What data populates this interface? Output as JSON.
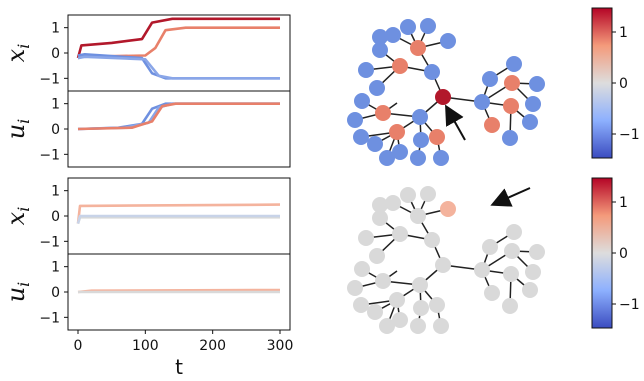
{
  "chart_data": [
    {
      "type": "line",
      "panel": "top-left-upper",
      "ylabel": "x_i",
      "xlim": [
        0,
        300
      ],
      "ylim": [
        -1.5,
        1.5
      ],
      "yticks": [
        "1",
        "0",
        "−1"
      ],
      "series": [
        {
          "color": "#b2182b",
          "points": [
            [
              0,
              -0.2
            ],
            [
              5,
              0.3
            ],
            [
              50,
              0.4
            ],
            [
              95,
              0.55
            ],
            [
              110,
              1.2
            ],
            [
              140,
              1.35
            ],
            [
              300,
              1.35
            ]
          ]
        },
        {
          "color": "#e8806a",
          "points": [
            [
              0,
              -0.2
            ],
            [
              5,
              -0.15
            ],
            [
              100,
              -0.1
            ],
            [
              115,
              0.2
            ],
            [
              130,
              0.9
            ],
            [
              160,
              1.0
            ],
            [
              300,
              1.0
            ]
          ]
        },
        {
          "color": "#6e90e0",
          "points": [
            [
              0,
              -0.1
            ],
            [
              10,
              -0.05
            ],
            [
              95,
              -0.2
            ],
            [
              110,
              -0.8
            ],
            [
              130,
              -1.0
            ],
            [
              300,
              -1.0
            ]
          ]
        },
        {
          "color": "#8aa6e8",
          "points": [
            [
              0,
              -0.2
            ],
            [
              10,
              -0.15
            ],
            [
              100,
              -0.25
            ],
            [
              120,
              -0.9
            ],
            [
              140,
              -1.0
            ],
            [
              300,
              -1.0
            ]
          ]
        }
      ]
    },
    {
      "type": "line",
      "panel": "top-left-lower",
      "ylabel": "u_i",
      "xlim": [
        0,
        300
      ],
      "ylim": [
        -1.5,
        1.5
      ],
      "yticks": [
        "1",
        "0",
        "−1"
      ],
      "series": [
        {
          "color": "#6e90e0",
          "points": [
            [
              0,
              0
            ],
            [
              60,
              0.05
            ],
            [
              95,
              0.2
            ],
            [
              110,
              0.8
            ],
            [
              130,
              1.0
            ],
            [
              300,
              1.0
            ]
          ]
        },
        {
          "color": "#8aa6e8",
          "points": [
            [
              0,
              0
            ],
            [
              70,
              0.05
            ],
            [
              105,
              0.25
            ],
            [
              120,
              0.85
            ],
            [
              140,
              1.0
            ],
            [
              300,
              1.0
            ]
          ]
        },
        {
          "color": "#e8806a",
          "points": [
            [
              0,
              0
            ],
            [
              80,
              0.05
            ],
            [
              110,
              0.3
            ],
            [
              125,
              0.9
            ],
            [
              145,
              1.0
            ],
            [
              300,
              1.0
            ]
          ]
        }
      ]
    },
    {
      "type": "line",
      "panel": "bottom-left-upper",
      "ylabel": "x_i",
      "xlim": [
        0,
        300
      ],
      "ylim": [
        -1.5,
        1.5
      ],
      "yticks": [
        "1",
        "0",
        "−1"
      ],
      "series": [
        {
          "color": "#f4b39d",
          "points": [
            [
              0,
              -0.3
            ],
            [
              3,
              0.4
            ],
            [
              300,
              0.45
            ]
          ]
        },
        {
          "color": "#d9d9d9",
          "points": [
            [
              0,
              -0.3
            ],
            [
              3,
              -0.05
            ],
            [
              300,
              -0.05
            ]
          ]
        },
        {
          "color": "#c8d3e8",
          "points": [
            [
              0,
              -0.3
            ],
            [
              3,
              0.0
            ],
            [
              300,
              0.0
            ]
          ]
        }
      ]
    },
    {
      "type": "line",
      "panel": "bottom-left-lower",
      "ylabel": "u_i",
      "xlabel": "t",
      "xlim": [
        0,
        300
      ],
      "ylim": [
        -1.5,
        1.5
      ],
      "yticks": [
        "1",
        "0",
        "−1"
      ],
      "xticks": [
        "0",
        "100",
        "200",
        "300"
      ],
      "series": [
        {
          "color": "#f4b39d",
          "points": [
            [
              0,
              0
            ],
            [
              20,
              0.05
            ],
            [
              300,
              0.08
            ]
          ]
        },
        {
          "color": "#d9d9d9",
          "points": [
            [
              0,
              0
            ],
            [
              300,
              0.0
            ]
          ]
        }
      ]
    },
    {
      "type": "colorbar",
      "panel": "top-right",
      "colormap": "coolwarm",
      "ticks": [
        "1",
        "0",
        "−1"
      ]
    },
    {
      "type": "colorbar",
      "panel": "bottom-right",
      "colormap": "coolwarm",
      "ticks": [
        "1",
        "0",
        "−1"
      ]
    }
  ],
  "networks": {
    "colors": {
      "red": "#b2182b",
      "orange": "#e8806a",
      "blue": "#6e90e0",
      "gray": "#d9d9d9",
      "peach": "#f4b39d"
    }
  }
}
